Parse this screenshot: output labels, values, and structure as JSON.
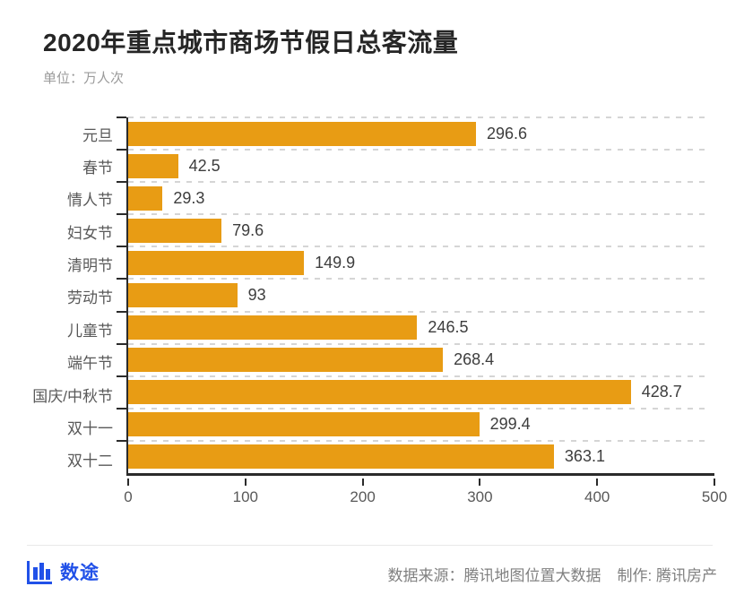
{
  "header": {
    "title": "2020年重点城市商场节假日总客流量",
    "unit_label": "单位：万人次"
  },
  "chart_data": {
    "type": "bar",
    "orientation": "horizontal",
    "title": "2020年重点城市商场节假日总客流量",
    "unit": "万人次",
    "categories": [
      "元旦",
      "春节",
      "情人节",
      "妇女节",
      "清明节",
      "劳动节",
      "儿童节",
      "端午节",
      "国庆/中秋节",
      "双十一",
      "双十二"
    ],
    "values": [
      296.6,
      42.5,
      29.3,
      79.6,
      149.9,
      93,
      246.5,
      268.4,
      428.7,
      299.4,
      363.1
    ],
    "value_labels": [
      "296.6",
      "42.5",
      "29.3",
      "79.6",
      "149.9",
      "93",
      "246.5",
      "268.4",
      "428.7",
      "299.4",
      "363.1"
    ],
    "x_ticks": [
      0,
      100,
      200,
      300,
      400,
      500
    ],
    "xlim": [
      0,
      500
    ],
    "xlabel": "",
    "ylabel": "",
    "grid": "dashed-lines-at-category-boundaries",
    "legend": "none"
  },
  "colors": {
    "bar": "#e89c14",
    "axis": "#2b2b2b",
    "grid": "#d5d5d5",
    "title_text": "#262626",
    "muted_text": "#9b9b9b",
    "brand_blue": "#2151e8"
  },
  "footer": {
    "brand_name": "数途",
    "source_label": "数据来源：腾讯地图位置大数据",
    "maker_label": "制作: 腾讯房产"
  }
}
